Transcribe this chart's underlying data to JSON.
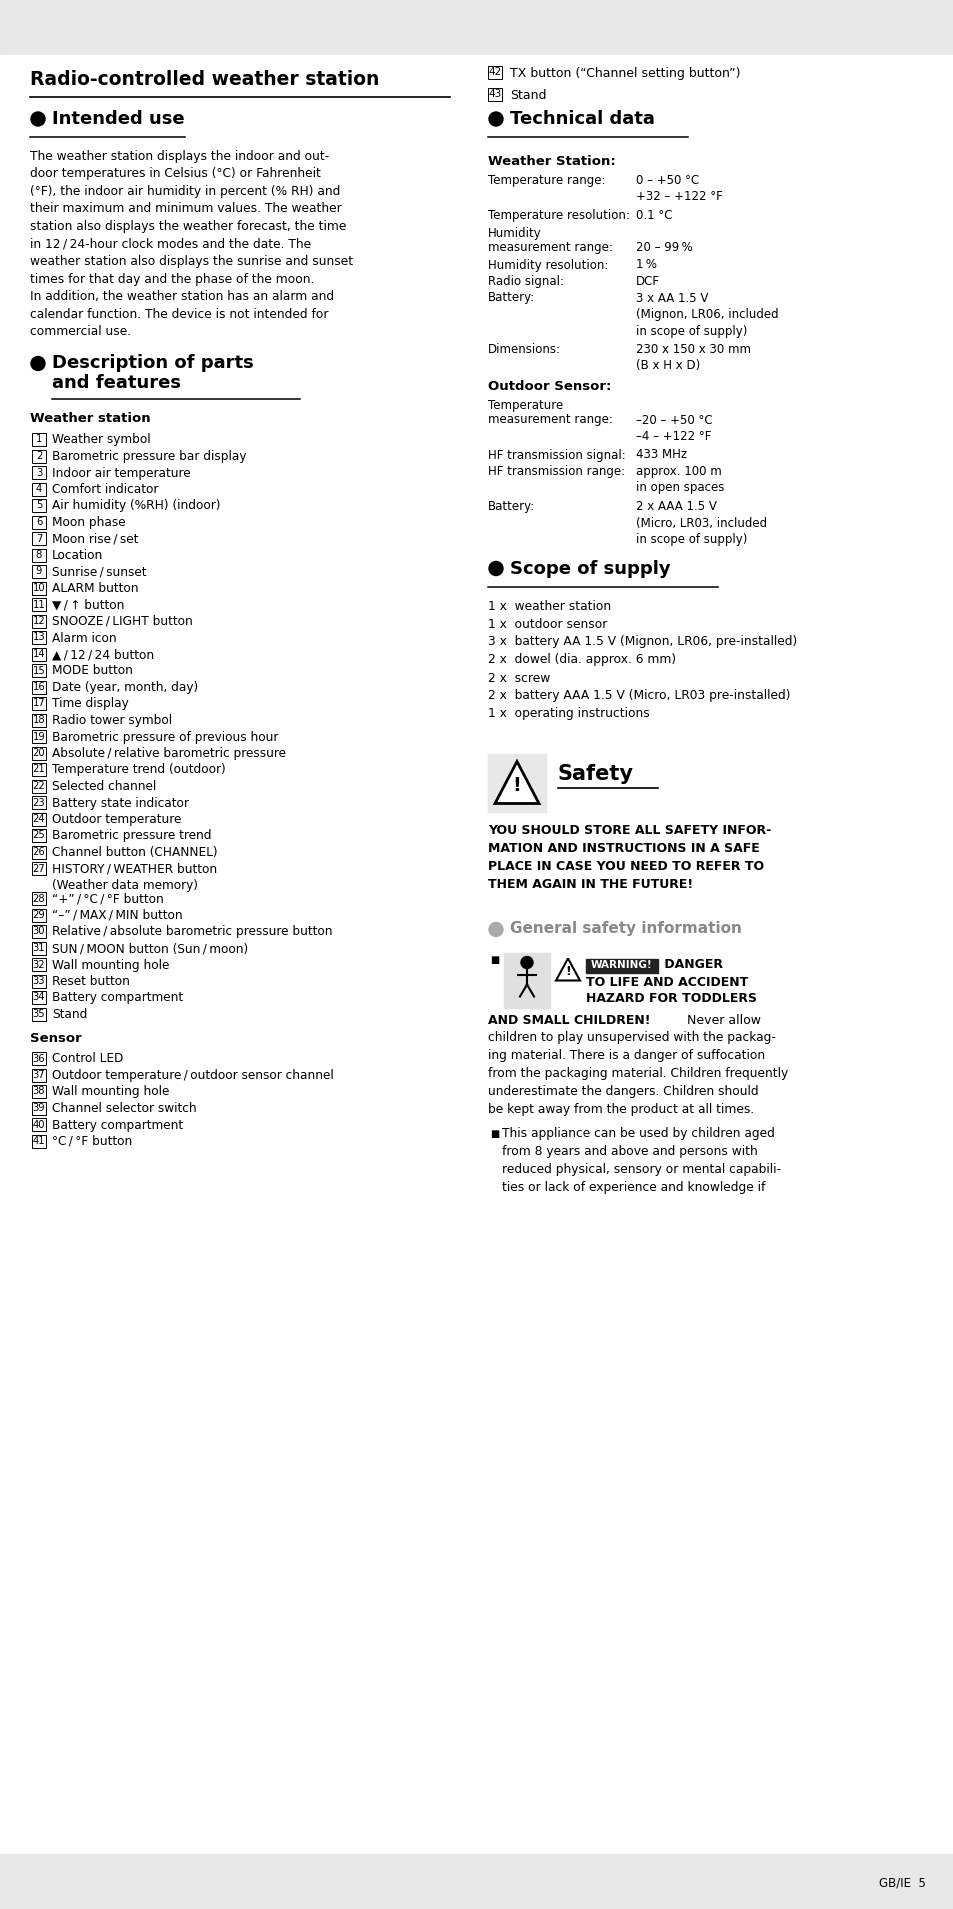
{
  "bg_color": "#e8e8e8",
  "page_bg": "#ffffff",
  "title": "Radio-controlled weather station",
  "header_items_right": [
    {
      "num": "42",
      "text": "TX button (“Channel setting button”)"
    },
    {
      "num": "43",
      "text": "Stand"
    }
  ],
  "section_intended_use": {
    "heading": "Intended use",
    "body": [
      "The weather station displays the indoor and out-",
      "door temperatures in Celsius (°C) or Fahrenheit",
      "(°F), the indoor air humidity in percent (% RH) and",
      "their maximum and minimum values. The weather",
      "station also displays the weather forecast, the time",
      "in 12 / 24-hour clock modes and the date. The",
      "weather station also displays the sunrise and sunset",
      "times for that day and the phase of the moon.",
      "In addition, the weather station has an alarm and",
      "calendar function. The device is not intended for",
      "commercial use."
    ]
  },
  "section_description": {
    "heading1": "Description of parts",
    "heading2": "and features",
    "sub_heading": "Weather station",
    "items": [
      {
        "num": "1",
        "text": "Weather symbol"
      },
      {
        "num": "2",
        "text": "Barometric pressure bar display"
      },
      {
        "num": "3",
        "text": "Indoor air temperature"
      },
      {
        "num": "4",
        "text": "Comfort indicator"
      },
      {
        "num": "5",
        "text": "Air humidity (%RH) (indoor)"
      },
      {
        "num": "6",
        "text": "Moon phase"
      },
      {
        "num": "7",
        "text": "Moon rise / set"
      },
      {
        "num": "8",
        "text": "Location"
      },
      {
        "num": "9",
        "text": "Sunrise / sunset"
      },
      {
        "num": "10",
        "text": "ALARM button"
      },
      {
        "num": "11",
        "text": "▼ / ↑ button"
      },
      {
        "num": "12",
        "text": "SNOOZE / LIGHT button"
      },
      {
        "num": "13",
        "text": "Alarm icon"
      },
      {
        "num": "14",
        "text": "▲ / 12 / 24 button"
      },
      {
        "num": "15",
        "text": "MODE button"
      },
      {
        "num": "16",
        "text": "Date (year, month, day)"
      },
      {
        "num": "17",
        "text": "Time display"
      },
      {
        "num": "18",
        "text": "Radio tower symbol"
      },
      {
        "num": "19",
        "text": "Barometric pressure of previous hour"
      },
      {
        "num": "20",
        "text": "Absolute / relative barometric pressure"
      },
      {
        "num": "21",
        "text": "Temperature trend (outdoor)"
      },
      {
        "num": "22",
        "text": "Selected channel"
      },
      {
        "num": "23",
        "text": "Battery state indicator"
      },
      {
        "num": "24",
        "text": "Outdoor temperature"
      },
      {
        "num": "25",
        "text": "Barometric pressure trend"
      },
      {
        "num": "26",
        "text": "Channel button (CHANNEL)"
      },
      {
        "num": "27",
        "text": "HISTORY / WEATHER button",
        "text2": "(Weather data memory)"
      },
      {
        "num": "28",
        "text": "“+” / °C / °F button"
      },
      {
        "num": "29",
        "text": "“–” / MAX / MIN button"
      },
      {
        "num": "30",
        "text": "Relative / absolute barometric pressure button"
      },
      {
        "num": "31",
        "text": "SUN / MOON button (Sun / moon)"
      },
      {
        "num": "32",
        "text": "Wall mounting hole"
      },
      {
        "num": "33",
        "text": "Reset button"
      },
      {
        "num": "34",
        "text": "Battery compartment"
      },
      {
        "num": "35",
        "text": "Stand"
      }
    ],
    "sensor_heading": "Sensor",
    "sensor_items": [
      {
        "num": "36",
        "text": "Control LED"
      },
      {
        "num": "37",
        "text": "Outdoor temperature / outdoor sensor channel"
      },
      {
        "num": "38",
        "text": "Wall mounting hole"
      },
      {
        "num": "39",
        "text": "Channel selector switch"
      },
      {
        "num": "40",
        "text": "Battery compartment"
      },
      {
        "num": "41",
        "text": "°C / °F button"
      }
    ]
  },
  "section_technical": {
    "heading": "Technical data",
    "ws_heading": "Weather Station:",
    "ws_items": [
      {
        "label": "Temperature range:",
        "value1": "0 – +50 °C",
        "value2": "+32 – +122 °F"
      },
      {
        "label": "Temperature resolution:",
        "value1": "0.1 °C",
        "value2": ""
      },
      {
        "label": "Humidity",
        "value1": "",
        "value2": ""
      },
      {
        "label": "measurement range:",
        "value1": "20 – 99 %",
        "value2": ""
      },
      {
        "label": "Humidity resolution:",
        "value1": "1 %",
        "value2": ""
      },
      {
        "label": "Radio signal:",
        "value1": "DCF",
        "value2": ""
      },
      {
        "label": "Battery:",
        "value1": "3 x AA 1.5 V",
        "value2": "(Mignon, LR06, included",
        "value3": "in scope of supply)"
      },
      {
        "label": "Dimensions:",
        "value1": "230 x 150 x 30 mm",
        "value2": "(B x H x D)"
      }
    ],
    "os_heading": "Outdoor Sensor:",
    "os_items": [
      {
        "label": "Temperature",
        "value1": "",
        "value2": ""
      },
      {
        "label": "measurement range:",
        "value1": "–20 – +50 °C",
        "value2": "–4 – +122 °F"
      },
      {
        "label": "HF transmission signal:",
        "value1": "433 MHz",
        "value2": ""
      },
      {
        "label": "HF transmission range:",
        "value1": "approx. 100 m",
        "value2": "in open spaces"
      },
      {
        "label": "Battery:",
        "value1": "2 x AAA 1.5 V",
        "value2": "(Micro, LR03, included",
        "value3": "in scope of supply)"
      }
    ]
  },
  "section_scope": {
    "heading": "Scope of supply",
    "items": [
      "1 x  weather station",
      "1 x  outdoor sensor",
      "3 x  battery AA 1.5 V (Mignon, LR06, pre-installed)",
      "2 x  dowel (dia. approx. 6 mm)",
      "2 x  screw",
      "2 x  battery AAA 1.5 V (Micro, LR03 pre-installed)",
      "1 x  operating instructions"
    ]
  },
  "section_safety": {
    "heading": "Safety",
    "body": [
      "YOU SHOULD STORE ALL SAFETY INFOR-",
      "MATION AND INSTRUCTIONS IN A SAFE",
      "PLACE IN CASE YOU NEED TO REFER TO",
      "THEM AGAIN IN THE FUTURE!"
    ]
  },
  "section_general": {
    "heading": "General safety information",
    "warning_label_bold": "WARNING!",
    "warning_after": " DANGER",
    "warning_line2": "TO LIFE AND ACCIDENT",
    "warning_line3": "HAZARD FOR TODDLERS",
    "warning_line4_bold": "AND SMALL CHILDREN!",
    "warning_line4_rest": " Never allow",
    "warning_body": [
      "children to play unsupervised with the packag-",
      "ing material. There is a danger of suffocation",
      "from the packaging material. Children frequently",
      "underestimate the dangers. Children should",
      "be kept away from the product at all times."
    ],
    "item2": [
      "This appliance can be used by children aged",
      "from 8 years and above and persons with",
      "reduced physical, sensory or mental capabili-",
      "ties or lack of experience and knowledge if"
    ]
  },
  "footer": "GB/IE  5"
}
